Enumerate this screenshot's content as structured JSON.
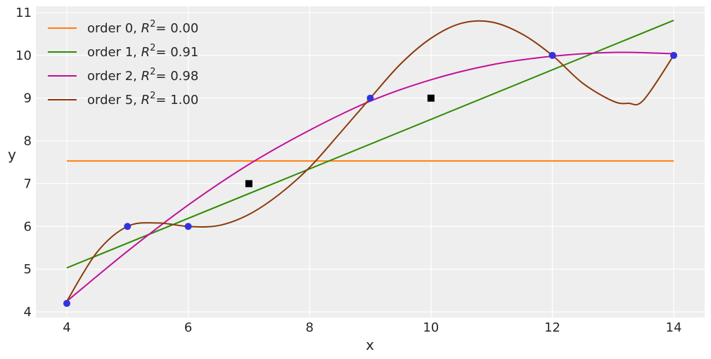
{
  "chart_data": {
    "type": "line",
    "title": "",
    "xlabel": "x",
    "ylabel": "y",
    "xlim": [
      3.5,
      14.5
    ],
    "ylim": [
      3.9,
      11.15
    ],
    "xticks": [
      4,
      6,
      8,
      10,
      12,
      14
    ],
    "yticks": [
      4,
      5,
      6,
      7,
      8,
      9,
      10,
      11
    ],
    "grid": true,
    "background": "#eeeeee",
    "legend_position": "upper left",
    "series": [
      {
        "name": "order 0",
        "r2": "0.00",
        "color": "#ff7f0e",
        "degree": 0,
        "x": [
          4,
          14
        ],
        "y": [
          7.53,
          7.53
        ]
      },
      {
        "name": "order 1",
        "r2": "0.91",
        "color": "#2e8b00",
        "degree": 1,
        "x": [
          4,
          14
        ],
        "y": [
          5.03,
          10.82
        ]
      },
      {
        "name": "order 2",
        "r2": "0.98",
        "color": "#c2109a",
        "degree": 2,
        "x": [
          4,
          5,
          6,
          7,
          8,
          9,
          10,
          11,
          12,
          13,
          14
        ],
        "y": [
          4.25,
          5.42,
          6.5,
          7.45,
          8.25,
          8.93,
          9.43,
          9.78,
          9.98,
          10.07,
          10.04
        ]
      },
      {
        "name": "order 5",
        "r2": "1.00",
        "color": "#8b3a0a",
        "degree": 5,
        "x": [
          4,
          4.5,
          5,
          5.5,
          6,
          6.5,
          7,
          7.5,
          8,
          8.5,
          9,
          9.5,
          10,
          10.5,
          11,
          11.5,
          12,
          12.5,
          13,
          13.25,
          13.5,
          14
        ],
        "y": [
          4.25,
          5.4,
          6.0,
          6.08,
          6.0,
          6.02,
          6.28,
          6.75,
          7.38,
          8.18,
          9.0,
          9.8,
          10.4,
          10.75,
          10.78,
          10.5,
          10.0,
          9.35,
          8.93,
          8.88,
          8.95,
          10.0
        ]
      }
    ],
    "points_train": {
      "marker": "circle",
      "color": "#3333dd",
      "x": [
        4,
        5,
        6,
        9,
        12,
        14
      ],
      "y": [
        4.2,
        6,
        6,
        9,
        10,
        10
      ]
    },
    "points_test": {
      "marker": "square",
      "color": "#000000",
      "x": [
        7,
        10
      ],
      "y": [
        7,
        9
      ]
    }
  },
  "legend": [
    {
      "label": "order 0, ",
      "r2_text": "= 0.00"
    },
    {
      "label": "order 1, ",
      "r2_text": "= 0.91"
    },
    {
      "label": "order 2, ",
      "r2_text": "= 0.98"
    },
    {
      "label": "order 5, ",
      "r2_text": "= 1.00"
    }
  ],
  "axes": {
    "xlabel": "x",
    "ylabel": "y",
    "r_symbol": "R",
    "r_sup": "2"
  }
}
